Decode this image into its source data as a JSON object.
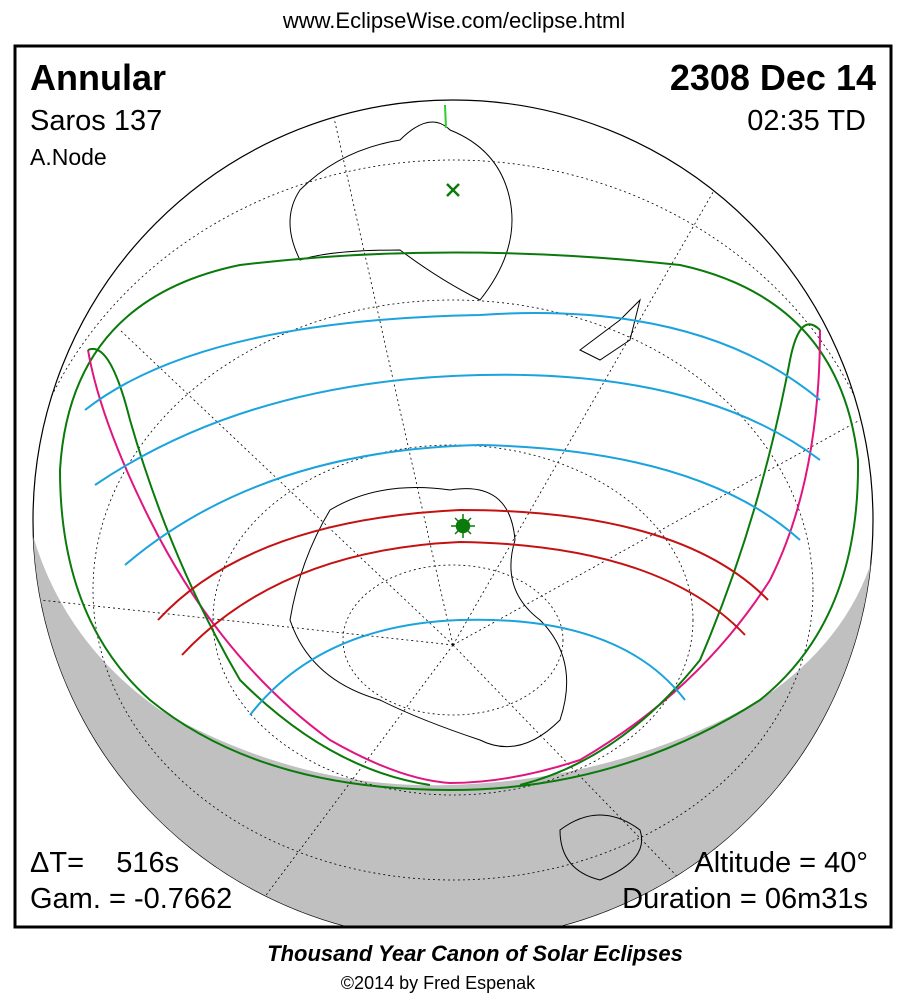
{
  "header": {
    "url": "www.EclipseWise.com/eclipse.html"
  },
  "panel": {
    "eclipse_type": "Annular",
    "saros": "Saros 137",
    "node": "A.Node",
    "date": "2308 Dec 14",
    "time": "02:35 TD",
    "delta_t": "ΔT=    516s",
    "gamma": "Gam. = -0.7662",
    "altitude": "Altitude = 40°",
    "duration": "Duration = 06m31s"
  },
  "footer": {
    "title": "Thousand Year Canon of Solar Eclipses",
    "credit": "©2014 by Fred Espenak"
  }
}
